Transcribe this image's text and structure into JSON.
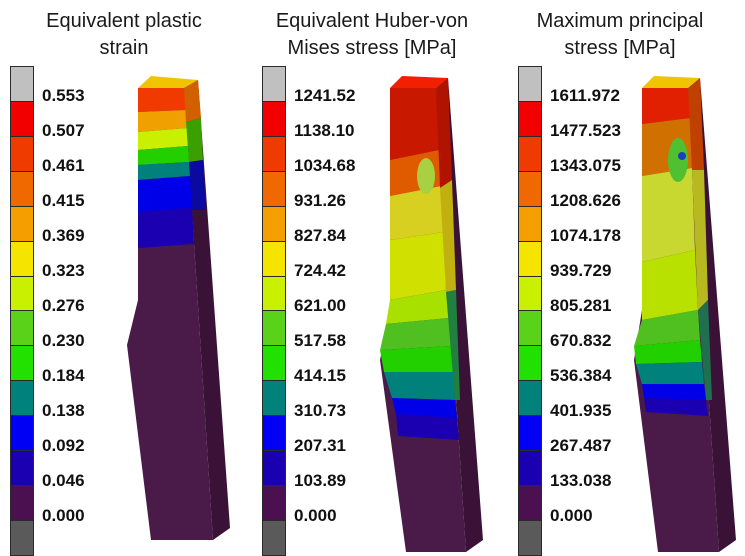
{
  "panels": [
    {
      "title_line1": "Equivalent plastic",
      "title_line2": "strain",
      "labels": [
        "0.553",
        "0.507",
        "0.461",
        "0.415",
        "0.369",
        "0.323",
        "0.276",
        "0.230",
        "0.184",
        "0.138",
        "0.092",
        "0.046",
        "0.000"
      ]
    },
    {
      "title_line1": "Equivalent Huber-von",
      "title_line2": "Mises stress [MPa]",
      "labels": [
        "1241.52",
        "1138.10",
        "1034.68",
        "931.26",
        "827.84",
        "724.42",
        "621.00",
        "517.58",
        "414.15",
        "310.73",
        "207.31",
        "103.89",
        "0.000"
      ]
    },
    {
      "title_line1": "Maximum principal",
      "title_line2": "stress [MPa]",
      "labels": [
        "1611.972",
        "1477.523",
        "1343.075",
        "1208.626",
        "1074.178",
        "939.729",
        "805.281",
        "670.832",
        "536.384",
        "401.935",
        "267.487",
        "133.038",
        "0.000"
      ]
    }
  ],
  "colors": {
    "legend": [
      "#c0c0c0",
      "#f20000",
      "#ef3a00",
      "#f06800",
      "#f59e00",
      "#f5e400",
      "#c9f000",
      "#5ad21a",
      "#22e000",
      "#00817c",
      "#0000f5",
      "#1a00b0",
      "#4a1050",
      "#5a5a5a"
    ],
    "model_base": "#4a1a48",
    "model_side": "#3a1238",
    "model_dark_side": "#2e0c2c"
  }
}
